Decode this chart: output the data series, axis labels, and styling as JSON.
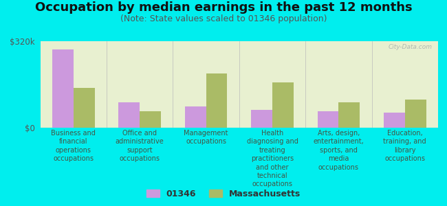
{
  "title": "Occupation by median earnings in the past 12 months",
  "subtitle": "(Note: State values scaled to 01346 population)",
  "categories": [
    "Business and\nfinancial\noperations\noccupations",
    "Office and\nadministrative\nsupport\noccupations",
    "Management\noccupations",
    "Health\ndiagnosing and\ntreating\npractitioners\nand other\ntechnical\noccupations",
    "Arts, design,\nentertainment,\nsports, and\nmedia\noccupations",
    "Education,\ntraining, and\nlibrary\noccupations"
  ],
  "values_01346": [
    290000,
    95000,
    78000,
    65000,
    60000,
    55000
  ],
  "values_mass": [
    148000,
    62000,
    200000,
    168000,
    95000,
    105000
  ],
  "ylim": [
    0,
    320000
  ],
  "yticks": [
    0,
    320000
  ],
  "ytick_labels": [
    "$0",
    "$320k"
  ],
  "color_01346": "#cc99dd",
  "color_mass": "#aabb66",
  "bg_color": "#00eeee",
  "plot_bg": "#e8f0d0",
  "watermark": "City-Data.com",
  "legend_01346": "01346",
  "legend_mass": "Massachusetts",
  "title_fontsize": 13,
  "subtitle_fontsize": 9,
  "label_fontsize": 7,
  "tick_fontsize": 8.5,
  "divider_color": "#bbbbbb",
  "baseline_color": "#999999"
}
